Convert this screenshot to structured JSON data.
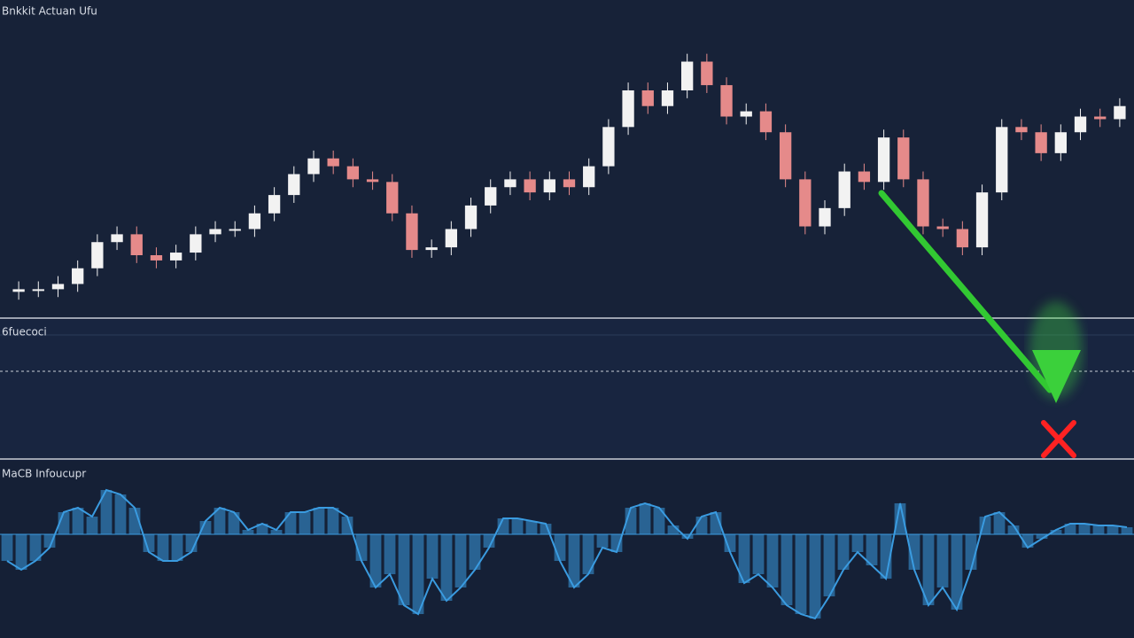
{
  "chart_data": [
    {
      "type": "candlestick",
      "title": "Bnkkit Actuan Ufu",
      "open": [
        2,
        3,
        3,
        5,
        11,
        21,
        24,
        16,
        14,
        17,
        24,
        26,
        26,
        32,
        39,
        47,
        53,
        50,
        45,
        44,
        32,
        18,
        19,
        26,
        35,
        42,
        45,
        40,
        45,
        42,
        50,
        65,
        79,
        73,
        79,
        90,
        81,
        69,
        71,
        63,
        45,
        27,
        34,
        48,
        44,
        61,
        45,
        27,
        26,
        19,
        40,
        65,
        63,
        55,
        63,
        69,
        68
      ],
      "high": [
        6,
        6,
        8,
        14,
        24,
        27,
        27,
        19,
        20,
        27,
        29,
        29,
        35,
        42,
        50,
        56,
        56,
        53,
        48,
        47,
        35,
        22,
        29,
        38,
        45,
        48,
        48,
        48,
        48,
        53,
        68,
        82,
        82,
        82,
        93,
        93,
        84,
        74,
        74,
        66,
        48,
        37,
        51,
        51,
        64,
        64,
        48,
        30,
        29,
        43,
        68,
        68,
        66,
        66,
        72,
        72,
        76
      ],
      "low": [
        -1,
        0,
        0,
        2,
        8,
        18,
        13,
        11,
        11,
        14,
        21,
        23,
        23,
        29,
        36,
        44,
        47,
        42,
        41,
        29,
        15,
        15,
        16,
        23,
        32,
        39,
        37,
        37,
        39,
        39,
        47,
        62,
        70,
        70,
        76,
        78,
        66,
        66,
        60,
        42,
        24,
        24,
        31,
        41,
        41,
        42,
        24,
        23,
        16,
        16,
        37,
        60,
        52,
        52,
        60,
        65,
        65
      ],
      "close": [
        3,
        3,
        5,
        11,
        21,
        24,
        16,
        14,
        17,
        24,
        26,
        26,
        32,
        39,
        47,
        53,
        50,
        45,
        44,
        32,
        18,
        19,
        26,
        35,
        42,
        45,
        40,
        45,
        42,
        50,
        65,
        79,
        73,
        79,
        90,
        81,
        69,
        71,
        63,
        45,
        27,
        34,
        48,
        44,
        61,
        45,
        27,
        26,
        19,
        40,
        65,
        63,
        55,
        63,
        69,
        68,
        73
      ],
      "ylim": [
        -5,
        100
      ],
      "up_color": "#f2f2f2",
      "down_color": "#e58a8a"
    },
    {
      "type": "indicator",
      "title": "6fuecoci"
    },
    {
      "type": "bar",
      "title": "MaCB Infoucupr",
      "values": [
        -30,
        -40,
        -30,
        -15,
        25,
        30,
        20,
        50,
        45,
        30,
        -20,
        -30,
        -30,
        -20,
        15,
        30,
        25,
        5,
        12,
        5,
        25,
        25,
        30,
        30,
        20,
        -30,
        -60,
        -45,
        -80,
        -90,
        -50,
        -75,
        -60,
        -40,
        -15,
        18,
        18,
        15,
        12,
        -30,
        -60,
        -45,
        -15,
        -20,
        30,
        35,
        30,
        10,
        -5,
        20,
        25,
        -20,
        -55,
        -45,
        -60,
        -80,
        -90,
        -95,
        -70,
        -40,
        -20,
        -35,
        -50,
        35,
        -40,
        -80,
        -60,
        -85,
        -40,
        20,
        25,
        10,
        -15,
        -5,
        5,
        12,
        12,
        10,
        10,
        8
      ],
      "ylim": [
        -112,
        78
      ],
      "color": "#3a9be0"
    }
  ]
}
